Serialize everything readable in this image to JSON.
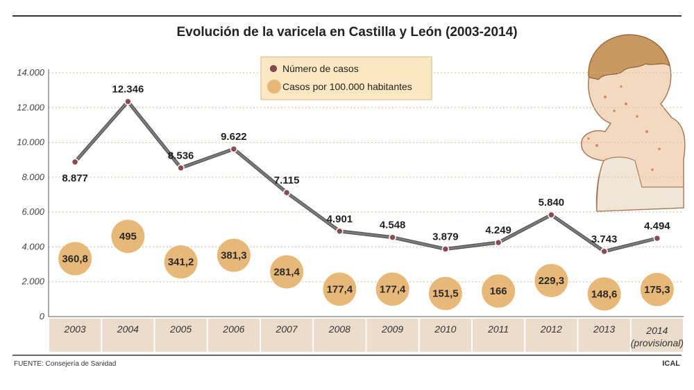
{
  "chart_data": {
    "type": "line",
    "title": "Evolución de la varicela en Castilla y León (2003-2014)",
    "categories": [
      "2003",
      "2004",
      "2005",
      "2006",
      "2007",
      "2008",
      "2009",
      "2010",
      "2011",
      "2012",
      "2013",
      "2014"
    ],
    "category_sublabels": [
      "",
      "",
      "",
      "",
      "",
      "",
      "",
      "",
      "",
      "",
      "",
      "(provisional)"
    ],
    "series": [
      {
        "name": "Número de casos",
        "kind": "line",
        "values": [
          8877,
          12346,
          8536,
          9622,
          7115,
          4901,
          4548,
          3879,
          4249,
          5840,
          3743,
          4494
        ],
        "labels": [
          "8.877",
          "12.346",
          "8.536",
          "9.622",
          "7.115",
          "4.901",
          "4.548",
          "3.879",
          "4.249",
          "5.840",
          "3.743",
          "4.494"
        ]
      },
      {
        "name": "Casos por 100.000 habitantes",
        "kind": "bubble",
        "values": [
          360.8,
          495,
          341.2,
          381.3,
          281.4,
          177.4,
          177.4,
          151.5,
          166,
          229.3,
          148.6,
          175.3
        ],
        "labels": [
          "360,8",
          "495",
          "341,2",
          "381,3",
          "281,4",
          "177,4",
          "177,4",
          "151,5",
          "166",
          "229,3",
          "148,6",
          "175,3"
        ]
      }
    ],
    "ylim": [
      0,
      14000
    ],
    "yticks": [
      0,
      2000,
      4000,
      6000,
      8000,
      10000,
      12000,
      14000
    ],
    "ytick_labels": [
      "0",
      "2.000",
      "4.000",
      "6.000",
      "8.000",
      "10.000",
      "12.000",
      "14.000"
    ],
    "xlabel": "",
    "ylabel": "",
    "grid": true,
    "legend_position": "top-center"
  },
  "footer": {
    "source": "FUENTE: Consejería de Sanidad",
    "credit": "ICAL"
  },
  "colors": {
    "line": "#7a7a7a",
    "marker": "#8a4a52",
    "bubble": "#e8b878",
    "axis_band": "#ecdccb",
    "legend_bg": "#fbe8c2",
    "grid": "#d7b98c"
  },
  "illustration": "boy-with-chickenpox-illustration"
}
